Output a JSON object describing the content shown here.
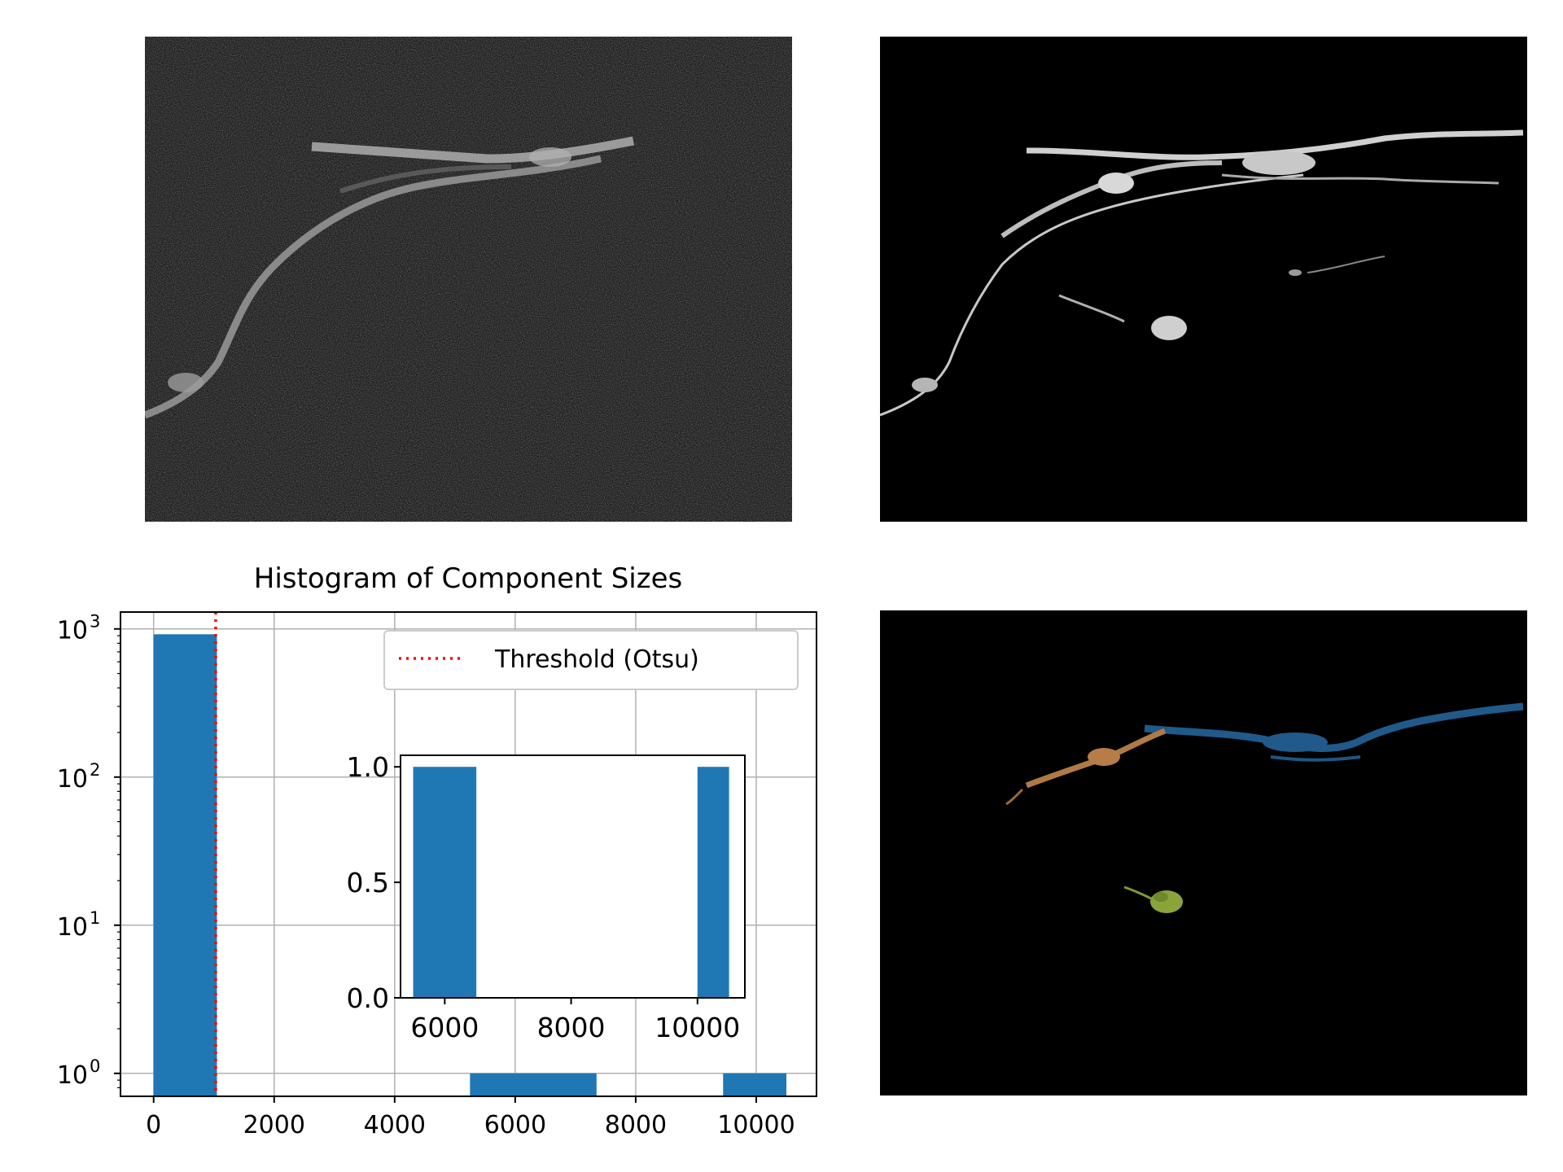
{
  "panels": {
    "raw": {
      "description_icon": "grayscale-microscopy-icon"
    },
    "filtered": {
      "description_icon": "filtered-microscopy-icon"
    },
    "labeled": {
      "description_icon": "labeled-components-icon"
    }
  },
  "chart_data": [
    {
      "type": "bar",
      "title": "Histogram of Component Sizes",
      "xlabel": "",
      "ylabel": "",
      "yscale": "log",
      "xlim": [
        -550,
        11000
      ],
      "ylim": [
        0.7,
        1300
      ],
      "xticks": [
        0,
        2000,
        4000,
        6000,
        8000,
        10000
      ],
      "xtick_labels": [
        "0",
        "2000",
        "4000",
        "6000",
        "8000",
        "10000"
      ],
      "yticks": [
        1,
        10,
        100,
        1000
      ],
      "ytick_labels": [
        {
          "base": "10",
          "exp": "0"
        },
        {
          "base": "10",
          "exp": "1"
        },
        {
          "base": "10",
          "exp": "2"
        },
        {
          "base": "10",
          "exp": "3"
        }
      ],
      "grid": true,
      "bars": [
        {
          "x0": 0,
          "x1": 1050,
          "value": 920
        },
        {
          "x0": 5250,
          "x1": 7350,
          "value": 1
        },
        {
          "x0": 9450,
          "x1": 10500,
          "value": 1
        }
      ],
      "threshold": {
        "x": 1030,
        "label": "Threshold (Otsu)",
        "color": "#ff0000",
        "style": "dotted"
      },
      "legend": "upper right",
      "bar_color": "#1f77b4"
    },
    {
      "type": "bar",
      "title": "",
      "inset": true,
      "xlim": [
        5300,
        10750
      ],
      "ylim": [
        0,
        1.05
      ],
      "xticks": [
        6000,
        8000,
        10000
      ],
      "xtick_labels": [
        "6000",
        "8000",
        "10000"
      ],
      "yticks": [
        0.0,
        0.5,
        1.0
      ],
      "ytick_labels": [
        "0.0",
        "0.5",
        "1.0"
      ],
      "bars": [
        {
          "x0": 5500,
          "x1": 6500,
          "value": 1
        },
        {
          "x0": 10000,
          "x1": 10500,
          "value": 1
        }
      ],
      "bar_color": "#1f77b4"
    }
  ]
}
